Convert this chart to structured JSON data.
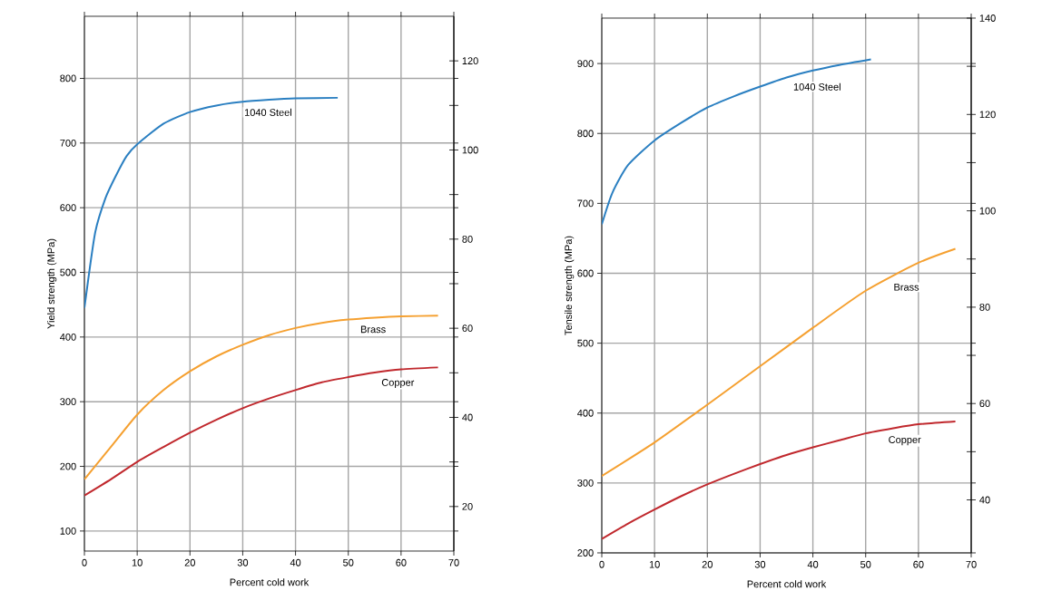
{
  "chart_data": [
    {
      "type": "line",
      "xlabel": "Percent cold work",
      "ylabel": "Yield strength (MPa)",
      "grid": true,
      "xlim": [
        0,
        70
      ],
      "xticks": [
        0,
        10,
        20,
        30,
        40,
        50,
        60,
        70
      ],
      "ylim": [
        69,
        896
      ],
      "yticks": [
        100,
        200,
        300,
        400,
        500,
        600,
        700,
        800
      ],
      "y2lim": [
        10,
        130
      ],
      "y2ticks": [
        20,
        {
          "value": 30,
          "label": null
        },
        40,
        {
          "value": 50,
          "label": null
        },
        60,
        {
          "value": 70,
          "label": null
        },
        80,
        {
          "value": 90,
          "label": null
        },
        100,
        {
          "value": 110,
          "label": null
        },
        120
      ],
      "series": [
        {
          "color": "#2a7fc1",
          "x": [
            0,
            2,
            4,
            6,
            8,
            10,
            15,
            20,
            25,
            30,
            35,
            40,
            48
          ],
          "values": [
            445,
            560,
            615,
            650,
            680,
            698,
            730,
            748,
            758,
            764,
            767,
            769,
            770
          ]
        },
        {
          "color": "#f5a030",
          "x": [
            0,
            5,
            10,
            15,
            20,
            25,
            30,
            35,
            40,
            45,
            50,
            55,
            60,
            67
          ],
          "values": [
            180,
            230,
            280,
            318,
            347,
            370,
            388,
            403,
            414,
            422,
            427,
            430,
            432,
            433
          ]
        },
        {
          "color": "#c0282d",
          "x": [
            0,
            5,
            10,
            15,
            20,
            25,
            30,
            35,
            40,
            45,
            50,
            55,
            60,
            67
          ],
          "values": [
            155,
            180,
            207,
            230,
            252,
            272,
            290,
            305,
            318,
            330,
            338,
            345,
            350,
            353
          ]
        }
      ],
      "annotations": [
        {
          "text": "1040 Steel",
          "x": 30,
          "y": 764
        },
        {
          "text": "Brass",
          "x": 52,
          "y": 428
        },
        {
          "text": "Copper",
          "x": 56,
          "y": 346
        }
      ]
    },
    {
      "type": "line",
      "xlabel": "Percent cold work",
      "ylabel": "Tensile strength (MPa)",
      "grid": true,
      "xlim": [
        0,
        70
      ],
      "xticks": [
        0,
        10,
        20,
        30,
        40,
        50,
        60,
        70
      ],
      "ylim": [
        200,
        965
      ],
      "yticks": [
        200,
        300,
        400,
        500,
        600,
        700,
        800,
        900
      ],
      "y2lim": [
        29,
        140
      ],
      "y2ticks": [
        40,
        {
          "value": 50,
          "label": null
        },
        60,
        {
          "value": 70,
          "label": null
        },
        80,
        {
          "value": 90,
          "label": null
        },
        100,
        {
          "value": 110,
          "label": null
        },
        120,
        {
          "value": 130,
          "label": null
        },
        140
      ],
      "series": [
        {
          "color": "#2a7fc1",
          "x": [
            0,
            2,
            5,
            10,
            15,
            20,
            25,
            30,
            35,
            40,
            45,
            51
          ],
          "values": [
            670,
            715,
            755,
            790,
            815,
            837,
            853,
            867,
            880,
            890,
            898,
            906
          ]
        },
        {
          "color": "#f5a030",
          "x": [
            0,
            10,
            20,
            30,
            40,
            50,
            60,
            67
          ],
          "values": [
            310,
            358,
            412,
            467,
            522,
            575,
            615,
            635
          ]
        },
        {
          "color": "#c0282d",
          "x": [
            0,
            5,
            10,
            15,
            20,
            25,
            30,
            35,
            40,
            45,
            50,
            55,
            60,
            67
          ],
          "values": [
            220,
            242,
            262,
            281,
            298,
            313,
            327,
            340,
            351,
            361,
            371,
            378,
            384,
            388
          ]
        }
      ],
      "annotations": [
        {
          "text": "1040 Steel",
          "x": 36,
          "y": 882
        },
        {
          "text": "Brass",
          "x": 55,
          "y": 595
        },
        {
          "text": "Copper",
          "x": 54,
          "y": 377
        }
      ]
    }
  ]
}
